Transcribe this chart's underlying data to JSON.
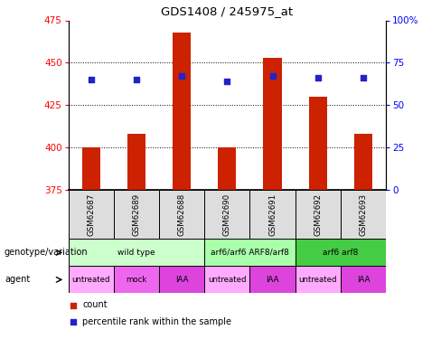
{
  "title": "GDS1408 / 245975_at",
  "samples": [
    "GSM62687",
    "GSM62689",
    "GSM62688",
    "GSM62690",
    "GSM62691",
    "GSM62692",
    "GSM62693"
  ],
  "bar_values": [
    400,
    408,
    468,
    400,
    453,
    430,
    408
  ],
  "bar_base": 375,
  "percentile_values": [
    65,
    65,
    67,
    64,
    67,
    66,
    66
  ],
  "ylim_left": [
    375,
    475
  ],
  "ylim_right": [
    0,
    100
  ],
  "yticks_left": [
    375,
    400,
    425,
    450,
    475
  ],
  "yticks_right": [
    0,
    25,
    50,
    75,
    100
  ],
  "bar_color": "#cc2200",
  "percentile_color": "#2222cc",
  "grid_yticks": [
    400,
    425,
    450
  ],
  "genotype_groups": [
    {
      "label": "wild type",
      "start": 0,
      "end": 2,
      "color": "#ccffcc"
    },
    {
      "label": "arf6/arf6 ARF8/arf8",
      "start": 3,
      "end": 4,
      "color": "#aaffaa"
    },
    {
      "label": "arf6 arf8",
      "start": 5,
      "end": 6,
      "color": "#44cc44"
    }
  ],
  "agent_groups": [
    {
      "label": "untreated",
      "start": 0,
      "end": 0,
      "color": "#ffaaff"
    },
    {
      "label": "mock",
      "start": 1,
      "end": 1,
      "color": "#ee66ee"
    },
    {
      "label": "IAA",
      "start": 2,
      "end": 2,
      "color": "#dd44dd"
    },
    {
      "label": "untreated",
      "start": 3,
      "end": 3,
      "color": "#ffaaff"
    },
    {
      "label": "IAA",
      "start": 4,
      "end": 4,
      "color": "#dd44dd"
    },
    {
      "label": "untreated",
      "start": 5,
      "end": 5,
      "color": "#ffaaff"
    },
    {
      "label": "IAA",
      "start": 6,
      "end": 6,
      "color": "#dd44dd"
    }
  ],
  "legend_count_color": "#cc2200",
  "legend_percentile_color": "#2222cc",
  "xlabel_row1": "genotype/variation",
  "xlabel_row2": "agent",
  "sample_box_color": "#dddddd"
}
